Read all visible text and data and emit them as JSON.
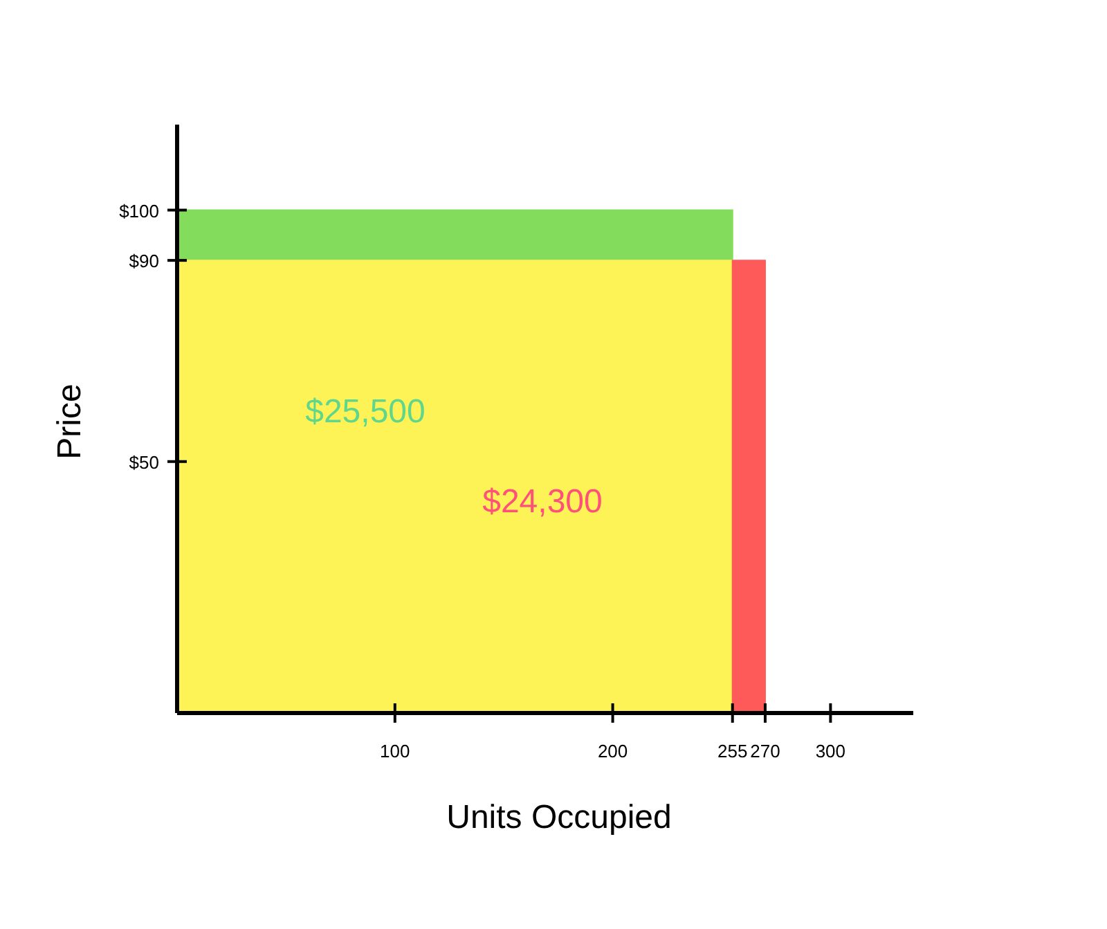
{
  "chart_data": {
    "type": "area",
    "xlabel": "Units Occupied",
    "ylabel": "Price",
    "xlim": [
      0,
      338
    ],
    "xticks": [
      100,
      200,
      255,
      270,
      300
    ],
    "ylim": [
      0,
      117
    ],
    "yticks": [
      {
        "value": 50,
        "label": "$50"
      },
      {
        "value": 90,
        "label": "$90"
      },
      {
        "value": 100,
        "label": "$100"
      }
    ],
    "series": [
      {
        "color": "#84dc5c",
        "x": [
          0,
          255
        ],
        "values": [
          100,
          100
        ]
      },
      {
        "color": "#fef356",
        "x": [
          0,
          255
        ],
        "values": [
          90,
          90
        ]
      },
      {
        "color": "#ff5a5a",
        "x": [
          255,
          270
        ],
        "values": [
          90,
          90
        ]
      }
    ],
    "annotations": [
      "$25,500",
      "$24,300"
    ]
  }
}
